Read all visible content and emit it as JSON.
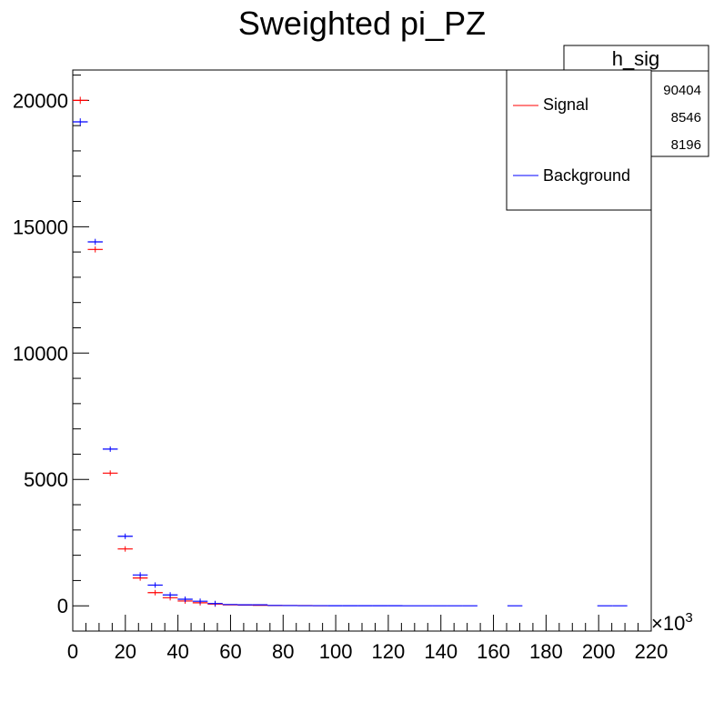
{
  "chart_data": {
    "type": "scatter",
    "title": "Sweighted pi_PZ",
    "xlabel": "",
    "ylabel": "",
    "x_multiplier": "×10",
    "x_multiplier_exp": "3",
    "xlim": [
      0,
      220
    ],
    "ylim": [
      -1000,
      21200
    ],
    "x_ticks": [
      0,
      20,
      40,
      60,
      80,
      100,
      120,
      140,
      160,
      180,
      200,
      220
    ],
    "y_ticks": [
      0,
      5000,
      10000,
      15000,
      20000
    ],
    "bin_width": 5.7,
    "grid": false,
    "legend_position": "top-right",
    "stats_box": {
      "title": "h_sig",
      "values": [
        "90404",
        "8546",
        "8196"
      ]
    },
    "series": [
      {
        "name": "Signal",
        "color": "#ff0000",
        "points": [
          {
            "x": 2.85,
            "y": 20000
          },
          {
            "x": 8.55,
            "y": 14100
          },
          {
            "x": 14.25,
            "y": 5250
          },
          {
            "x": 19.95,
            "y": 2250
          },
          {
            "x": 25.65,
            "y": 1100
          },
          {
            "x": 31.35,
            "y": 520
          },
          {
            "x": 37.05,
            "y": 320
          },
          {
            "x": 42.75,
            "y": 190
          },
          {
            "x": 48.45,
            "y": 120
          },
          {
            "x": 54.15,
            "y": 70
          },
          {
            "x": 59.85,
            "y": 40
          },
          {
            "x": 65.55,
            "y": 30
          },
          {
            "x": 71.25,
            "y": 20
          },
          {
            "x": 76.95,
            "y": 10
          },
          {
            "x": 82.65,
            "y": 10
          },
          {
            "x": 88.35,
            "y": 10
          },
          {
            "x": 94.05,
            "y": 5
          }
        ]
      },
      {
        "name": "Background",
        "color": "#0000ff",
        "points": [
          {
            "x": 2.85,
            "y": 19150
          },
          {
            "x": 8.55,
            "y": 14400
          },
          {
            "x": 14.25,
            "y": 6200
          },
          {
            "x": 19.95,
            "y": 2750
          },
          {
            "x": 25.65,
            "y": 1220
          },
          {
            "x": 31.35,
            "y": 820
          },
          {
            "x": 37.05,
            "y": 430
          },
          {
            "x": 42.75,
            "y": 260
          },
          {
            "x": 48.45,
            "y": 180
          },
          {
            "x": 54.15,
            "y": 90
          },
          {
            "x": 59.85,
            "y": 50
          },
          {
            "x": 65.55,
            "y": 40
          },
          {
            "x": 71.25,
            "y": 40
          },
          {
            "x": 76.95,
            "y": 15
          },
          {
            "x": 82.65,
            "y": 10
          },
          {
            "x": 88.35,
            "y": 5
          },
          {
            "x": 94.05,
            "y": 5
          },
          {
            "x": 99.75,
            "y": 3
          },
          {
            "x": 105.45,
            "y": 3
          },
          {
            "x": 111.15,
            "y": 2
          },
          {
            "x": 116.85,
            "y": 2
          },
          {
            "x": 122.55,
            "y": 2
          },
          {
            "x": 128.25,
            "y": 1
          },
          {
            "x": 133.95,
            "y": 1
          },
          {
            "x": 139.65,
            "y": 1
          },
          {
            "x": 145.35,
            "y": 1
          },
          {
            "x": 151.05,
            "y": 1
          },
          {
            "x": 168.15,
            "y": 1
          },
          {
            "x": 202.35,
            "y": 1
          },
          {
            "x": 208.05,
            "y": 1
          }
        ]
      }
    ]
  }
}
